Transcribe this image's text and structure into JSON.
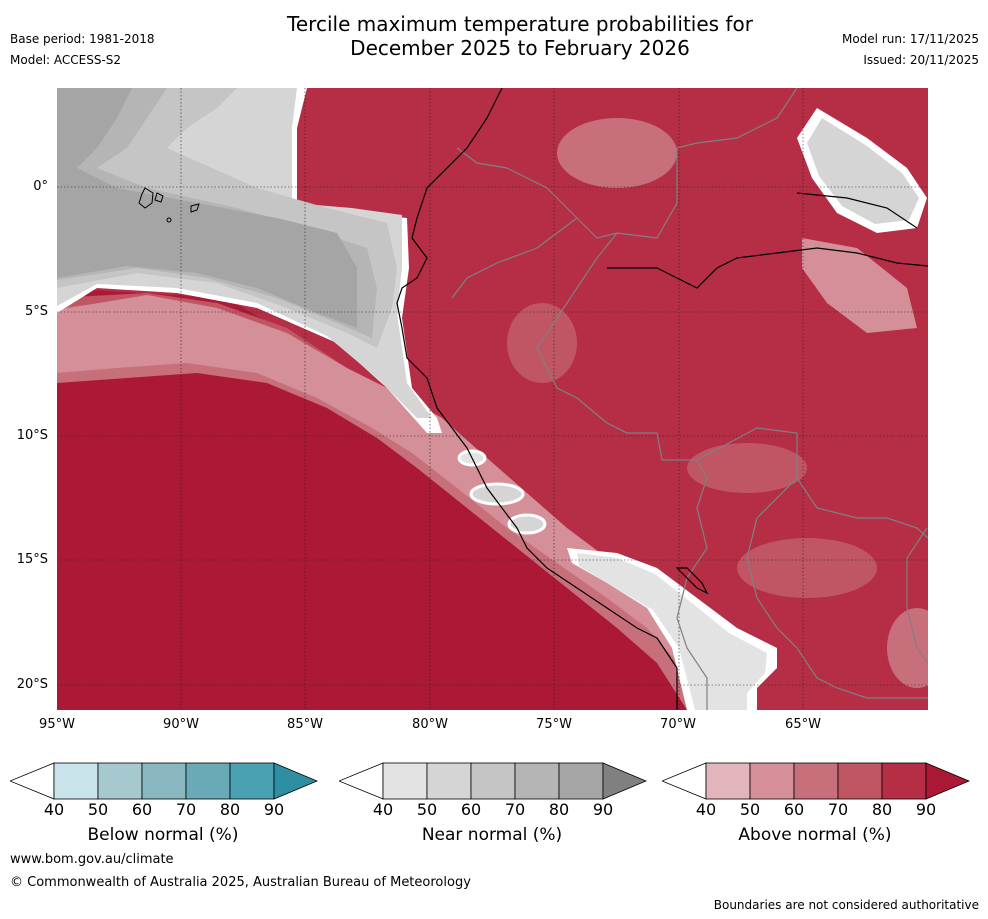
{
  "title": {
    "line1": "Tercile maximum temperature probabilities for",
    "line2": "December 2025 to February 2026"
  },
  "meta": {
    "base_period": "Base period: 1981-2018",
    "model": "Model: ACCESS-S2",
    "model_run": "Model run: 17/11/2025",
    "issued": "Issued: 20/11/2025"
  },
  "map": {
    "lat_labels": [
      "0°",
      "5°S",
      "10°S",
      "15°S",
      "20°S"
    ],
    "lon_labels": [
      "95°W",
      "90°W",
      "85°W",
      "80°W",
      "75°W",
      "70°W",
      "65°W"
    ]
  },
  "legend": {
    "below": {
      "title": "Below normal (%)",
      "ticks": [
        "40",
        "50",
        "60",
        "70",
        "80",
        "90"
      ],
      "colors": [
        "#ffffff",
        "#c8e3e9",
        "#a6c9d0",
        "#88b7c2",
        "#6aaab6",
        "#4aa1b1",
        "#2e8fa3"
      ]
    },
    "near": {
      "title": "Near normal (%)",
      "ticks": [
        "40",
        "50",
        "60",
        "70",
        "80",
        "90"
      ],
      "colors": [
        "#ffffff",
        "#e3e3e3",
        "#d5d5d5",
        "#c5c5c5",
        "#b5b5b5",
        "#a5a5a5",
        "#808080"
      ]
    },
    "above": {
      "title": "Above normal (%)",
      "ticks": [
        "40",
        "50",
        "60",
        "70",
        "80",
        "90"
      ],
      "colors": [
        "#ffffff",
        "#e1b5bb",
        "#d48f99",
        "#c86f7c",
        "#c05664",
        "#b52e46",
        "#ac1937"
      ]
    }
  },
  "footer": {
    "website": "www.bom.gov.au/climate",
    "copyright": "© Commonwealth of Australia 2025, Australian Bureau of Meteorology",
    "disclaimer": "Boundaries are not considered authoritative"
  }
}
